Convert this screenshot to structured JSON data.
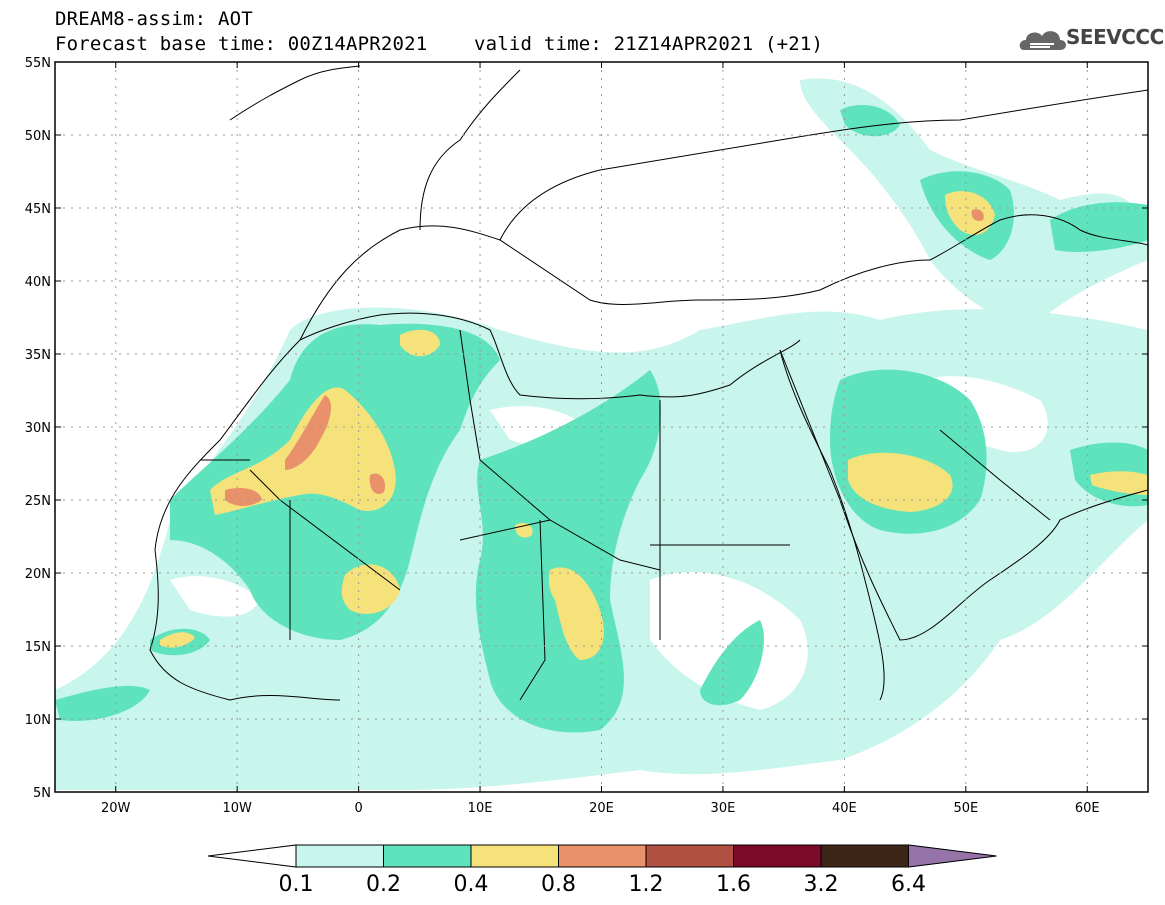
{
  "header": {
    "line1": "DREAM8-assim: AOT",
    "line2": "Forecast base time: 00Z14APR2021    valid time: 21Z14APR2021 (+21)",
    "logo_text": "SEEVCCC"
  },
  "map": {
    "lon_range": [
      -25,
      65
    ],
    "lat_range": [
      5,
      55
    ],
    "lon_ticks": [
      {
        "value": -20,
        "label": "20W"
      },
      {
        "value": -10,
        "label": "10W"
      },
      {
        "value": 0,
        "label": "0"
      },
      {
        "value": 10,
        "label": "10E"
      },
      {
        "value": 20,
        "label": "20E"
      },
      {
        "value": 30,
        "label": "30E"
      },
      {
        "value": 40,
        "label": "40E"
      },
      {
        "value": 50,
        "label": "50E"
      },
      {
        "value": 60,
        "label": "60E"
      }
    ],
    "lat_ticks": [
      {
        "value": 55,
        "label": "55N"
      },
      {
        "value": 50,
        "label": "50N"
      },
      {
        "value": 45,
        "label": "45N"
      },
      {
        "value": 40,
        "label": "40N"
      },
      {
        "value": 35,
        "label": "35N"
      },
      {
        "value": 30,
        "label": "30N"
      },
      {
        "value": 25,
        "label": "25N"
      },
      {
        "value": 20,
        "label": "20N"
      },
      {
        "value": 15,
        "label": "15N"
      },
      {
        "value": 10,
        "label": "10N"
      },
      {
        "value": 5,
        "label": "5N"
      }
    ],
    "grid": "dotted"
  },
  "colorbar": {
    "thresholds": [
      "0.1",
      "0.2",
      "0.4",
      "0.8",
      "1.2",
      "1.6",
      "3.2",
      "6.4"
    ],
    "colors": [
      "#c8f5ec",
      "#5fe3bd",
      "#f6e27a",
      "#e8916a",
      "#b05040",
      "#7d0a28",
      "#3d2618",
      "#9673a8"
    ]
  }
}
